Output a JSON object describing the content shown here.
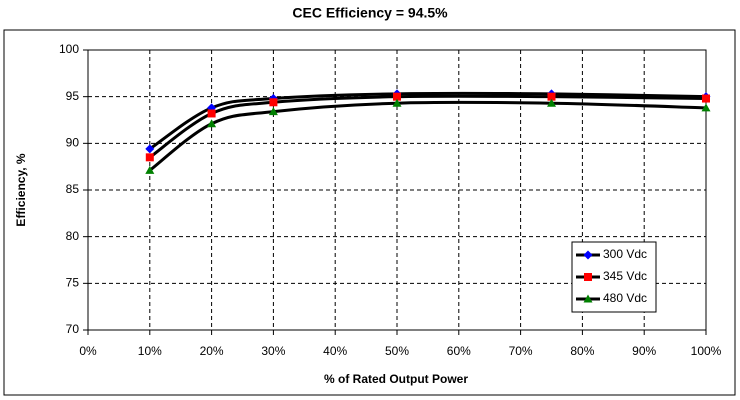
{
  "chart_data": {
    "type": "line",
    "title": "CEC Efficiency = 94.5%",
    "x_label": "% of Rated Output Power",
    "y_label": "Efficiency, %",
    "x": [
      10,
      20,
      30,
      50,
      75,
      100
    ],
    "series": [
      {
        "name": "300 Vdc",
        "color": "#0000ff",
        "marker": "diamond",
        "values": [
          89.4,
          93.8,
          94.8,
          95.3,
          95.3,
          95.0
        ]
      },
      {
        "name": "345 Vdc",
        "color": "#ff0000",
        "marker": "square",
        "values": [
          88.5,
          93.2,
          94.4,
          95.0,
          95.0,
          94.8
        ]
      },
      {
        "name": "480 Vdc",
        "color": "#008000",
        "marker": "triangle",
        "values": [
          87.1,
          92.1,
          93.4,
          94.3,
          94.3,
          93.8
        ]
      }
    ],
    "line_color": "#000000",
    "smooth": true,
    "xlim": [
      0,
      100
    ],
    "xticks": [
      {
        "value": 0,
        "label": "0%"
      },
      {
        "value": 10,
        "label": "10%"
      },
      {
        "value": 20,
        "label": "20%"
      },
      {
        "value": 30,
        "label": "30%"
      },
      {
        "value": 40,
        "label": "40%"
      },
      {
        "value": 50,
        "label": "50%"
      },
      {
        "value": 60,
        "label": "60%"
      },
      {
        "value": 70,
        "label": "70%"
      },
      {
        "value": 80,
        "label": "80%"
      },
      {
        "value": 90,
        "label": "90%"
      },
      {
        "value": 100,
        "label": "100%"
      }
    ],
    "ylim": [
      70,
      100
    ],
    "yticks": [
      70,
      75,
      80,
      85,
      90,
      95,
      100
    ],
    "grid": true,
    "legend": "lower right"
  }
}
